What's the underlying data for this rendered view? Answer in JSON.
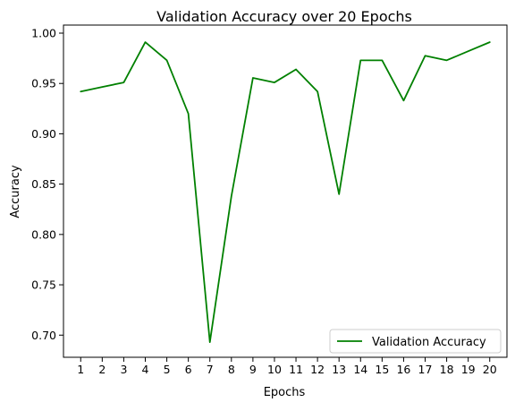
{
  "chart_data": {
    "type": "line",
    "title": "Validation Accuracy over 20 Epochs",
    "xlabel": "Epochs",
    "ylabel": "Accuracy",
    "x": [
      1,
      2,
      3,
      4,
      5,
      6,
      7,
      8,
      9,
      10,
      11,
      12,
      13,
      14,
      15,
      16,
      17,
      18,
      19,
      20
    ],
    "xlim": [
      0.2,
      20.8
    ],
    "ylim": [
      0.678,
      1.008
    ],
    "xticks": [
      "1",
      "2",
      "3",
      "4",
      "5",
      "6",
      "7",
      "8",
      "9",
      "10",
      "11",
      "12",
      "13",
      "14",
      "15",
      "16",
      "17",
      "18",
      "19",
      "20"
    ],
    "yticks": [
      0.7,
      0.75,
      0.8,
      0.85,
      0.9,
      0.95,
      1.0
    ],
    "ytick_labels": [
      "0.70",
      "0.75",
      "0.80",
      "0.85",
      "0.90",
      "0.95",
      "1.00"
    ],
    "series": [
      {
        "name": "Validation Accuracy",
        "color": "#008000",
        "values": [
          0.942,
          0.9465,
          0.951,
          0.991,
          0.973,
          0.92,
          0.693,
          0.838,
          0.9555,
          0.951,
          0.964,
          0.942,
          0.84,
          0.973,
          0.973,
          0.933,
          0.9775,
          0.973,
          0.982,
          0.991
        ]
      }
    ],
    "legend": {
      "position": "lower-right",
      "entries": [
        "Validation Accuracy"
      ]
    },
    "grid": false
  }
}
